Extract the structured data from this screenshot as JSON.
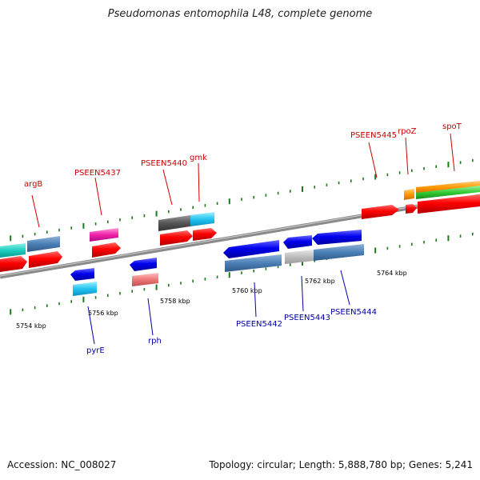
{
  "title": "Pseudomonas entomophila L48, complete genome",
  "footer": {
    "accession": "Accession: NC_008027",
    "topology": "Topology: circular; Length: 5,888,780 bp; Genes: 5,241"
  },
  "kbp_labels": [
    "5754 kbp",
    "5756 kbp",
    "5758 kbp",
    "5760 kbp",
    "5762 kbp",
    "5764 kbp"
  ],
  "gene_labels_top": [
    "argB",
    "PSEEN5437",
    "PSEEN5440",
    "gmk",
    "PSEEN5445",
    "rpoZ",
    "spoT"
  ],
  "gene_labels_bottom": [
    "pyrE",
    "rph",
    "PSEEN5442",
    "PSEEN5443",
    "PSEEN5444"
  ],
  "colors": {
    "top_label": "#cc0000",
    "bottom_label": "#0000aa",
    "tick": "#1a7a1a",
    "backbone": "#888888"
  }
}
